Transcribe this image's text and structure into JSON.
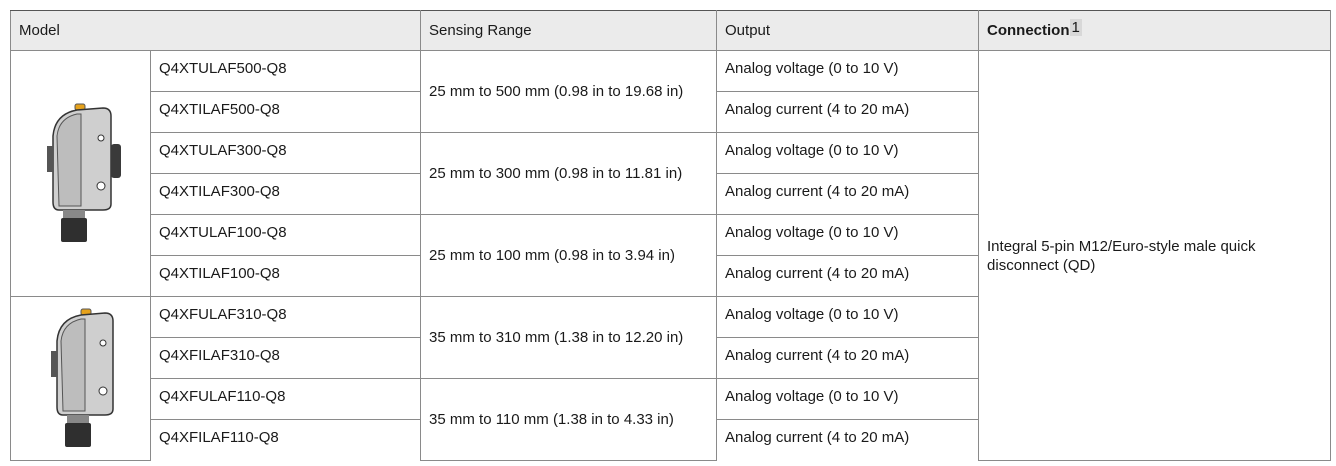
{
  "table": {
    "header": [
      "Model",
      "Sensing Range",
      "Output",
      "Connection"
    ],
    "header_footnote": "1",
    "rows": [
      {
        "model": "Q4XTULAF500-Q8",
        "output": "Analog voltage (0 to 10 V)"
      },
      {
        "model": "Q4XTILAF500-Q8",
        "output": "Analog current (4 to 20 mA)"
      },
      {
        "model": "Q4XTULAF300-Q8",
        "output": "Analog voltage (0 to 10 V)"
      },
      {
        "model": "Q4XTILAF300-Q8",
        "output": "Analog current (4 to 20 mA)"
      },
      {
        "model": "Q4XTULAF100-Q8",
        "output": "Analog voltage (0 to 10 V)"
      },
      {
        "model": "Q4XTILAF100-Q8",
        "output": "Analog current (4 to 20 mA)"
      },
      {
        "model": "Q4XFULAF310-Q8",
        "output": "Analog voltage (0 to 10 V)"
      },
      {
        "model": "Q4XFILAF310-Q8",
        "output": "Analog current (4 to 20 mA)"
      },
      {
        "model": "Q4XFULAF110-Q8",
        "output": "Analog voltage (0 to 10 V)"
      },
      {
        "model": "Q4XFILAF110-Q8",
        "output": "Analog current (4 to 20 mA)"
      }
    ],
    "ranges": [
      "25 mm to 500 mm (0.98 in to 19.68 in)",
      "25 mm to 300 mm (0.98 in to 11.81 in)",
      "25 mm to 100 mm (0.98 in to 3.94 in)",
      "35 mm to 310 mm (1.38 in to 12.20 in)",
      "35 mm to 110 mm (1.38 in to 4.33 in)"
    ],
    "connection": "Integral 5-pin M12/Euro-style male quick disconnect (QD)"
  }
}
